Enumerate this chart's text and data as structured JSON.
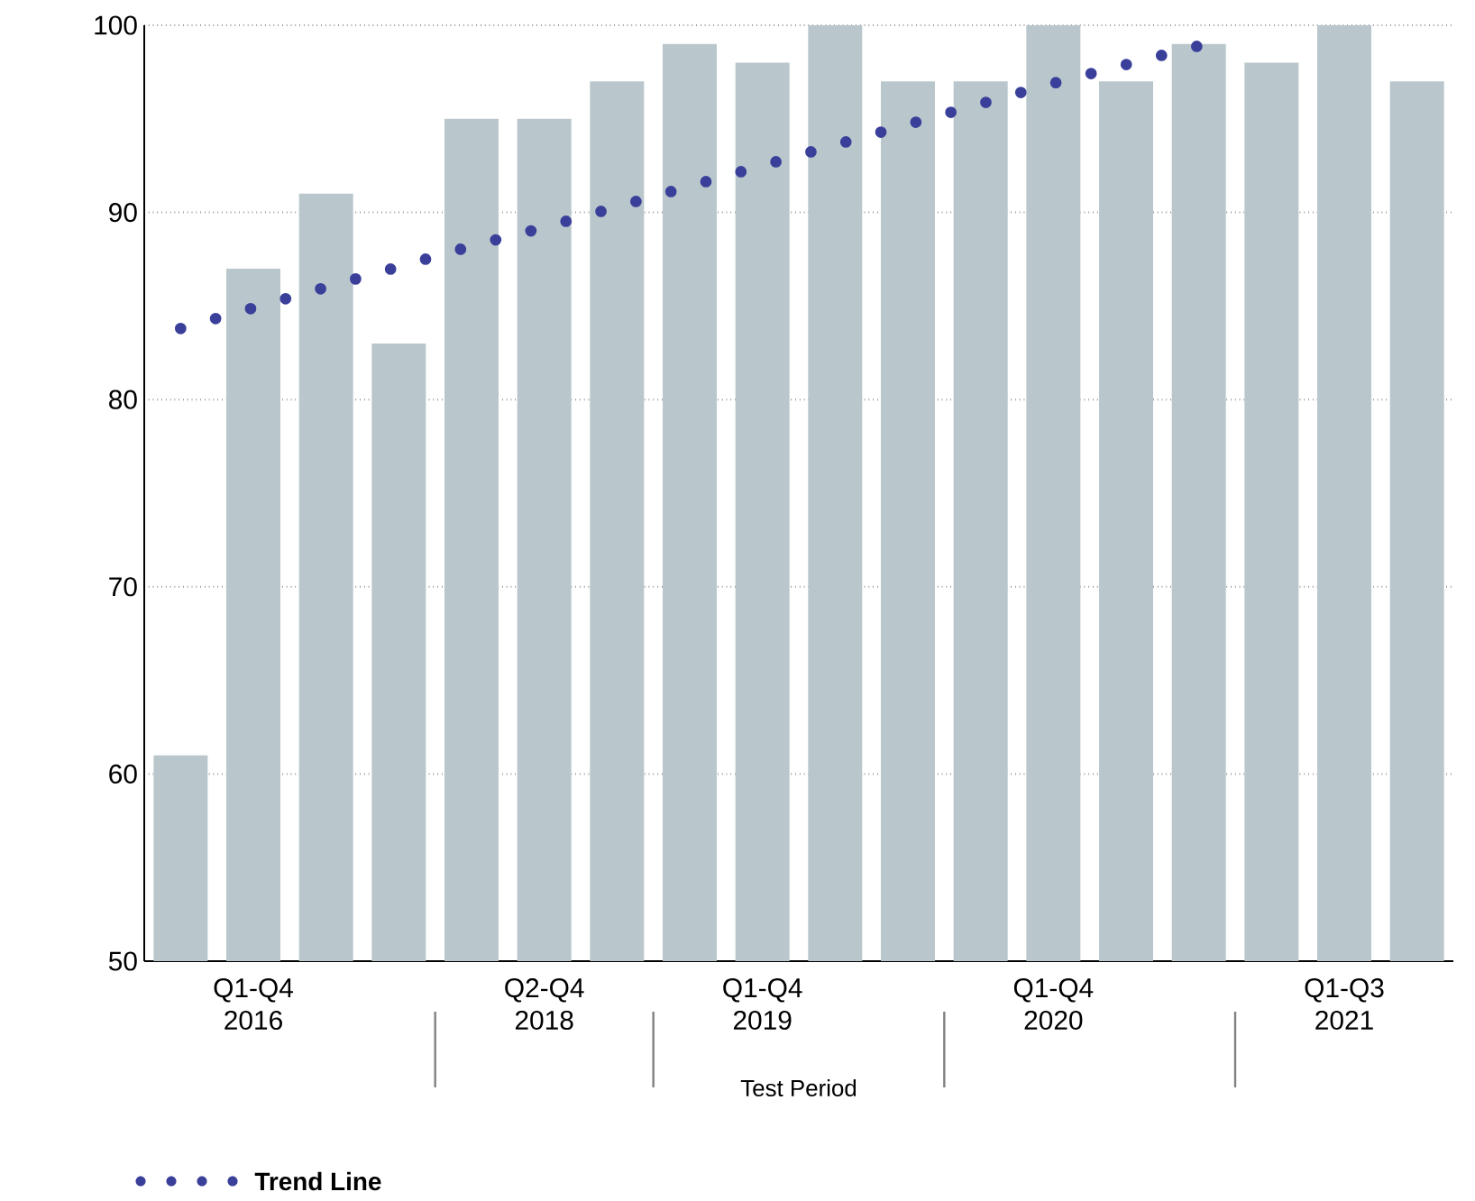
{
  "chart_data": {
    "type": "bar",
    "xlabel": "Test Period",
    "categories": [
      null,
      "Q1-Q4 2016",
      null,
      null,
      null,
      "Q2-Q4 2018",
      null,
      null,
      "Q1-Q4 2019",
      null,
      null,
      null,
      "Q1-Q4 2020",
      null,
      null,
      null,
      "Q1-Q3 2021",
      null
    ],
    "values": [
      61,
      87,
      91,
      83,
      95,
      95,
      97,
      99,
      98,
      100,
      97,
      97,
      100,
      97,
      99,
      98,
      100,
      97
    ],
    "color": "#b9c7cc",
    "series": [
      {
        "name": "Trend Line",
        "type": "line",
        "line_style": "dotted",
        "color": "#3a3f9a",
        "values": [
          83.8,
          84.9,
          86.0,
          87.1,
          88.2,
          89.2,
          90.3,
          91.4,
          92.5,
          93.6,
          94.7,
          95.8,
          96.9,
          97.9,
          98.9,
          null,
          null,
          null
        ]
      }
    ],
    "ylim": [
      50,
      100
    ],
    "yticks": [
      50,
      60,
      70,
      80,
      90,
      100
    ],
    "grid": "y",
    "legend": "bottom left"
  }
}
